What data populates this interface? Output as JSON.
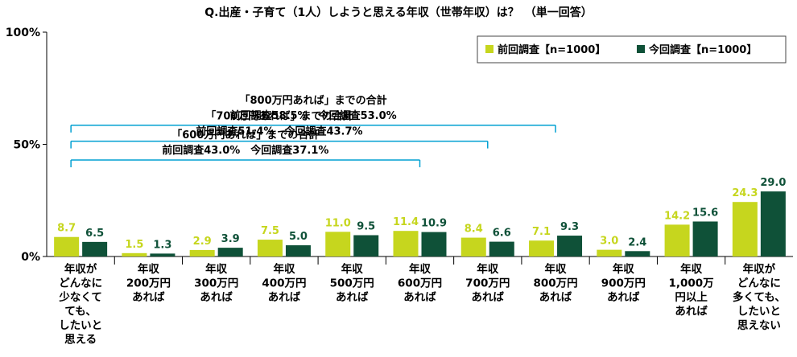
{
  "chart_data": {
    "type": "bar",
    "title": "Q.出産・子育て（1人）しようと思える年収（世帯年収）は？　（単一回答）",
    "ylim": [
      0,
      100
    ],
    "yticks": [
      "0%",
      "50%",
      "100%"
    ],
    "categories": [
      [
        "年収が",
        "どんなに",
        "少なくて",
        "ても、",
        "したいと",
        "思える"
      ],
      [
        "年収",
        "200万円",
        "あれば"
      ],
      [
        "年収",
        "300万円",
        "あれば"
      ],
      [
        "年収",
        "400万円",
        "あれば"
      ],
      [
        "年収",
        "500万円",
        "あれば"
      ],
      [
        "年収",
        "600万円",
        "あれば"
      ],
      [
        "年収",
        "700万円",
        "あれば"
      ],
      [
        "年収",
        "800万円",
        "あれば"
      ],
      [
        "年収",
        "900万円",
        "あれば"
      ],
      [
        "年収",
        "1,000万",
        "円以上",
        "あれば"
      ],
      [
        "年収が",
        "どんなに",
        "多くても、",
        "したいと",
        "思えない"
      ]
    ],
    "series": [
      {
        "name": "前回調査【n=1000】",
        "color": "#c6d61e",
        "values": [
          8.7,
          1.5,
          2.9,
          7.5,
          11.0,
          11.4,
          8.4,
          7.1,
          3.0,
          14.2,
          24.3
        ],
        "labels": [
          "8.7",
          "1.5",
          "2.9",
          "7.5",
          "11.0",
          "11.4",
          "8.4",
          "7.1",
          "3.0",
          "14.2",
          "24.3"
        ]
      },
      {
        "name": "今回調査【n=1000】",
        "color": "#0f5138",
        "values": [
          6.5,
          1.3,
          3.9,
          5.0,
          9.5,
          10.9,
          6.6,
          9.3,
          2.4,
          15.6,
          29.0
        ],
        "labels": [
          "6.5",
          "1.3",
          "3.9",
          "5.0",
          "9.5",
          "10.9",
          "6.6",
          "9.3",
          "2.4",
          "15.6",
          "29.0"
        ]
      }
    ],
    "annotations": [
      {
        "title": "「800万円あれば」までの合計",
        "detail": "前回調査58.5%　今回調査53.0%",
        "level": 58.5,
        "end_category": 7
      },
      {
        "title": "「700万円あれば」までの合計",
        "detail": "前回調査51.4%　今回調査43.7%",
        "level": 51.4,
        "end_category": 6
      },
      {
        "title": "「600万円あれば」までの合計",
        "detail": "前回調査43.0%　今回調査37.1%",
        "level": 43.0,
        "end_category": 5
      }
    ],
    "legend": "top-right",
    "grid": false
  }
}
